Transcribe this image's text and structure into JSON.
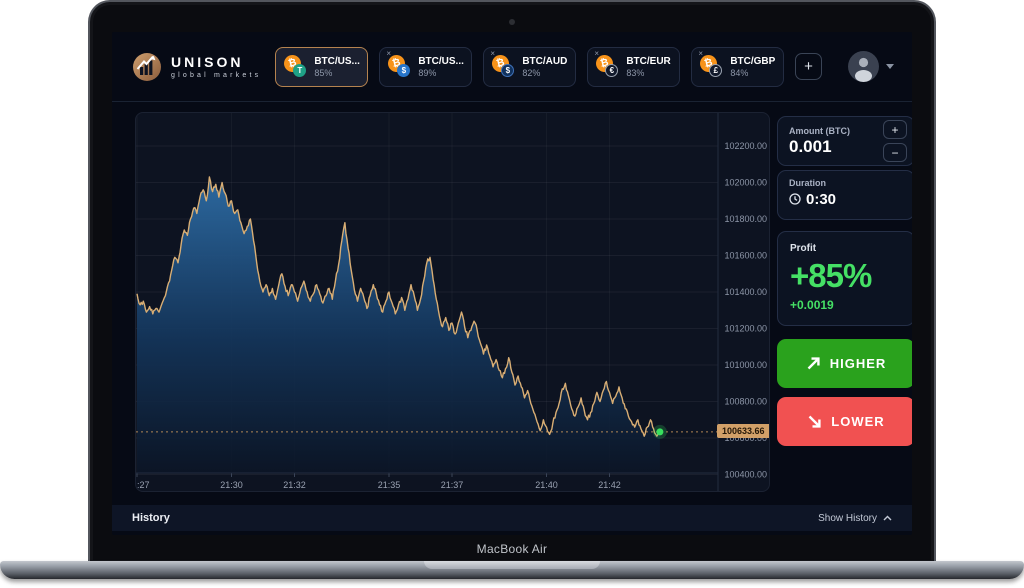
{
  "device": {
    "label": "MacBook Air"
  },
  "colors": {
    "accent_copper": "#bd8a5e",
    "higher_green": "#2aa21d",
    "lower_red": "#f15151",
    "profit_green": "#45e065",
    "chart_line": "#d9ae74",
    "chart_fill_top": "#2e6da6",
    "chart_fill_bottom": "#0b1526",
    "price_badge_bg": "#d2a068",
    "dot_green": "#38e05e",
    "grid_line": "rgba(255,255,255,0.055)",
    "axis_text": "#8d96a8"
  },
  "header": {
    "logo": {
      "title": "UNISON",
      "subtitle": "global markets"
    },
    "tabs": [
      {
        "label": "BTC/US...",
        "percent": "85%",
        "selected": true,
        "closable": false,
        "base_icon": "bitcoin-icon",
        "base_symbol": "₿",
        "quote_icon": "tether-icon",
        "quote_symbol": "T",
        "quote_bg": "#1fa186",
        "quote_border": "none"
      },
      {
        "label": "BTC/US...",
        "percent": "89%",
        "selected": false,
        "closable": true,
        "base_icon": "bitcoin-icon",
        "base_symbol": "₿",
        "quote_icon": "usdc-icon",
        "quote_symbol": "$",
        "quote_bg": "#2775ca",
        "quote_border": "none"
      },
      {
        "label": "BTC/AUD",
        "percent": "82%",
        "selected": false,
        "closable": true,
        "base_icon": "bitcoin-icon",
        "base_symbol": "₿",
        "quote_icon": "aud-dollar-icon",
        "quote_symbol": "$",
        "quote_bg": "#11325e",
        "quote_border": "#3f71b8"
      },
      {
        "label": "BTC/EUR",
        "percent": "83%",
        "selected": false,
        "closable": true,
        "base_icon": "bitcoin-icon",
        "base_symbol": "₿",
        "quote_icon": "euro-icon",
        "quote_symbol": "€",
        "quote_bg": "#11192b",
        "quote_border": "#9aa3b0"
      },
      {
        "label": "BTC/GBP",
        "percent": "84%",
        "selected": false,
        "closable": true,
        "base_icon": "bitcoin-icon",
        "base_symbol": "₿",
        "quote_icon": "gbp-icon",
        "quote_symbol": "£",
        "quote_bg": "#11192b",
        "quote_border": "#9aa3b0"
      }
    ],
    "close_glyph": "×",
    "add_tab_label": "+"
  },
  "sidebar": {
    "amount": {
      "label": "Amount (BTC)",
      "value": "0.001",
      "increase": "+",
      "decrease": "−"
    },
    "duration": {
      "label": "Duration",
      "value": "0:30"
    },
    "profit": {
      "label": "Profit",
      "percent": "+85%",
      "delta": "+0.0019"
    },
    "higher_label": "HIGHER",
    "lower_label": "LOWER"
  },
  "history": {
    "title": "History",
    "toggle_label": "Show History"
  },
  "chart_data": {
    "type": "area",
    "title": "",
    "y_ticks": [
      102200,
      102000,
      101800,
      101600,
      101400,
      101200,
      101000,
      100800,
      100600,
      100400
    ],
    "ylim": [
      100411,
      102380
    ],
    "x_ticks": [
      {
        "label": ":27",
        "t": 0
      },
      {
        "label": "21:30",
        "t": 3
      },
      {
        "label": "21:32",
        "t": 5
      },
      {
        "label": "21:35",
        "t": 8
      },
      {
        "label": "21:37",
        "t": 10
      },
      {
        "label": "21:40",
        "t": 13
      },
      {
        "label": "21:42",
        "t": 15
      }
    ],
    "current_price": 100633.66,
    "current_price_label": "100633.66",
    "points": [
      [
        0,
        101390
      ],
      [
        0.1,
        101330
      ],
      [
        0.2,
        101350
      ],
      [
        0.3,
        101290
      ],
      [
        0.4,
        101320
      ],
      [
        0.5,
        101280
      ],
      [
        0.6,
        101310
      ],
      [
        0.7,
        101290
      ],
      [
        0.8,
        101340
      ],
      [
        0.9,
        101380
      ],
      [
        1,
        101450
      ],
      [
        1.1,
        101520
      ],
      [
        1.2,
        101590
      ],
      [
        1.3,
        101560
      ],
      [
        1.4,
        101660
      ],
      [
        1.5,
        101740
      ],
      [
        1.6,
        101710
      ],
      [
        1.7,
        101800
      ],
      [
        1.8,
        101860
      ],
      [
        1.9,
        101830
      ],
      [
        2,
        101920
      ],
      [
        2.1,
        101960
      ],
      [
        2.2,
        101900
      ],
      [
        2.3,
        102030
      ],
      [
        2.4,
        101950
      ],
      [
        2.5,
        101990
      ],
      [
        2.6,
        101920
      ],
      [
        2.7,
        102000
      ],
      [
        2.8,
        101940
      ],
      [
        2.9,
        101870
      ],
      [
        3,
        101900
      ],
      [
        3.1,
        101830
      ],
      [
        3.2,
        101850
      ],
      [
        3.3,
        101780
      ],
      [
        3.4,
        101720
      ],
      [
        3.5,
        101760
      ],
      [
        3.6,
        101800
      ],
      [
        3.7,
        101680
      ],
      [
        3.8,
        101560
      ],
      [
        3.9,
        101460
      ],
      [
        4,
        101400
      ],
      [
        4.1,
        101440
      ],
      [
        4.2,
        101380
      ],
      [
        4.3,
        101420
      ],
      [
        4.4,
        101360
      ],
      [
        4.5,
        101440
      ],
      [
        4.6,
        101500
      ],
      [
        4.7,
        101430
      ],
      [
        4.8,
        101380
      ],
      [
        4.9,
        101440
      ],
      [
        5,
        101400
      ],
      [
        5.1,
        101350
      ],
      [
        5.2,
        101420
      ],
      [
        5.3,
        101460
      ],
      [
        5.4,
        101400
      ],
      [
        5.5,
        101350
      ],
      [
        5.6,
        101390
      ],
      [
        5.7,
        101440
      ],
      [
        5.8,
        101390
      ],
      [
        5.9,
        101340
      ],
      [
        6,
        101380
      ],
      [
        6.1,
        101420
      ],
      [
        6.2,
        101360
      ],
      [
        6.3,
        101460
      ],
      [
        6.4,
        101550
      ],
      [
        6.5,
        101680
      ],
      [
        6.6,
        101780
      ],
      [
        6.7,
        101640
      ],
      [
        6.8,
        101520
      ],
      [
        6.9,
        101410
      ],
      [
        7,
        101350
      ],
      [
        7.1,
        101420
      ],
      [
        7.2,
        101370
      ],
      [
        7.3,
        101310
      ],
      [
        7.4,
        101380
      ],
      [
        7.5,
        101440
      ],
      [
        7.6,
        101390
      ],
      [
        7.7,
        101330
      ],
      [
        7.8,
        101290
      ],
      [
        7.9,
        101350
      ],
      [
        8,
        101400
      ],
      [
        8.1,
        101340
      ],
      [
        8.2,
        101280
      ],
      [
        8.3,
        101330
      ],
      [
        8.4,
        101370
      ],
      [
        8.5,
        101300
      ],
      [
        8.6,
        101360
      ],
      [
        8.7,
        101440
      ],
      [
        8.8,
        101380
      ],
      [
        8.9,
        101300
      ],
      [
        9,
        101360
      ],
      [
        9.1,
        101460
      ],
      [
        9.2,
        101560
      ],
      [
        9.3,
        101590
      ],
      [
        9.4,
        101470
      ],
      [
        9.5,
        101360
      ],
      [
        9.6,
        101270
      ],
      [
        9.7,
        101210
      ],
      [
        9.8,
        101260
      ],
      [
        9.9,
        101190
      ],
      [
        10,
        101230
      ],
      [
        10.1,
        101170
      ],
      [
        10.2,
        101230
      ],
      [
        10.3,
        101290
      ],
      [
        10.4,
        101210
      ],
      [
        10.5,
        101150
      ],
      [
        10.6,
        101190
      ],
      [
        10.7,
        101240
      ],
      [
        10.8,
        101190
      ],
      [
        10.9,
        101120
      ],
      [
        11,
        101060
      ],
      [
        11.1,
        101110
      ],
      [
        11.2,
        101050
      ],
      [
        11.3,
        100990
      ],
      [
        11.4,
        101030
      ],
      [
        11.5,
        100970
      ],
      [
        11.6,
        100930
      ],
      [
        11.7,
        100980
      ],
      [
        11.8,
        101040
      ],
      [
        11.9,
        100960
      ],
      [
        12,
        100890
      ],
      [
        12.1,
        100940
      ],
      [
        12.2,
        100880
      ],
      [
        12.3,
        100820
      ],
      [
        12.4,
        100860
      ],
      [
        12.5,
        100790
      ],
      [
        12.6,
        100740
      ],
      [
        12.7,
        100690
      ],
      [
        12.8,
        100640
      ],
      [
        12.9,
        100700
      ],
      [
        13,
        100660
      ],
      [
        13.1,
        100620
      ],
      [
        13.2,
        100680
      ],
      [
        13.3,
        100740
      ],
      [
        13.4,
        100790
      ],
      [
        13.5,
        100870
      ],
      [
        13.6,
        100900
      ],
      [
        13.7,
        100830
      ],
      [
        13.8,
        100760
      ],
      [
        13.9,
        100720
      ],
      [
        14,
        100770
      ],
      [
        14.1,
        100820
      ],
      [
        14.2,
        100750
      ],
      [
        14.3,
        100700
      ],
      [
        14.4,
        100740
      ],
      [
        14.5,
        100790
      ],
      [
        14.6,
        100850
      ],
      [
        14.7,
        100800
      ],
      [
        14.8,
        100860
      ],
      [
        14.9,
        100910
      ],
      [
        15,
        100850
      ],
      [
        15.1,
        100790
      ],
      [
        15.2,
        100830
      ],
      [
        15.3,
        100880
      ],
      [
        15.4,
        100820
      ],
      [
        15.5,
        100760
      ],
      [
        15.6,
        100720
      ],
      [
        15.7,
        100690
      ],
      [
        15.8,
        100660
      ],
      [
        15.9,
        100700
      ],
      [
        16,
        100650
      ],
      [
        16.1,
        100610
      ],
      [
        16.2,
        100660
      ],
      [
        16.3,
        100700
      ],
      [
        16.4,
        100650
      ],
      [
        16.5,
        100610
      ],
      [
        16.6,
        100633.66
      ]
    ]
  }
}
